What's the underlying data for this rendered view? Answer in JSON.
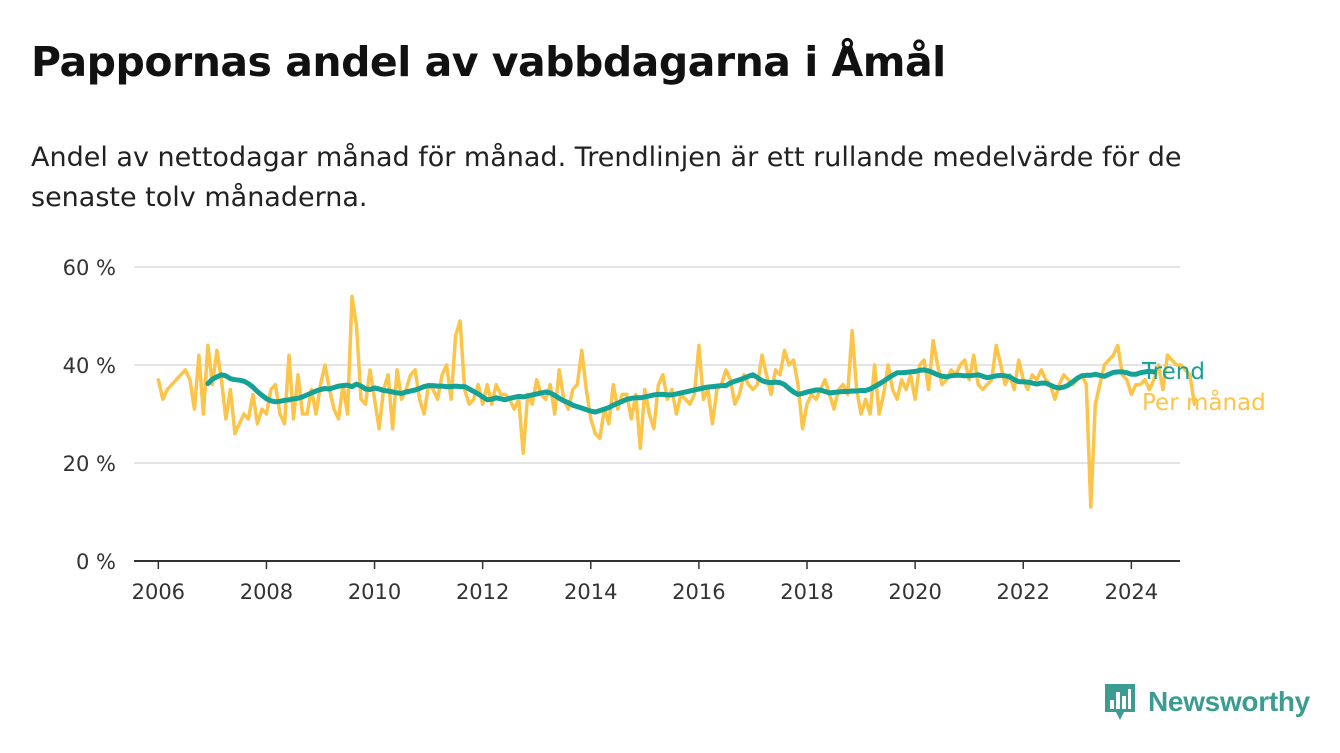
{
  "title": "Pappornas andel av vabbdagarna i Åmål",
  "subtitle": "Andel av nettodagar månad för månad. Trendlinjen är ett rullande medelvärde för de senaste tolv månaderna.",
  "brand": {
    "name": "Newsworthy",
    "color": "#3d9c92"
  },
  "chart_data": {
    "type": "line",
    "x_range": [
      2005.55,
      2024.9
    ],
    "ylim": [
      0,
      60
    ],
    "y_ticks": [
      0,
      20,
      40,
      60
    ],
    "y_tick_labels": [
      "0 %",
      "20 %",
      "40 %",
      "60 %"
    ],
    "x_ticks": [
      2006,
      2008,
      2010,
      2012,
      2014,
      2016,
      2018,
      2020,
      2022,
      2024
    ],
    "x_tick_labels": [
      "2006",
      "2008",
      "2010",
      "2012",
      "2014",
      "2016",
      "2018",
      "2020",
      "2022",
      "2024"
    ],
    "grid": "horizontal",
    "legend_placement": "end-of-line labels",
    "series": [
      {
        "name": "Per månad",
        "color": "#fcc448",
        "x_start": 2006.0,
        "step": 0.0833333,
        "values": [
          37,
          33,
          35,
          36,
          37,
          38,
          39,
          37,
          31,
          42,
          30,
          44,
          36,
          43,
          37,
          29,
          35,
          26,
          28,
          30,
          29,
          34,
          28,
          31,
          30,
          35,
          36,
          30,
          28,
          42,
          29,
          38,
          30,
          30,
          35,
          30,
          36,
          40,
          35,
          31,
          29,
          36,
          30,
          54,
          48,
          33,
          32,
          39,
          33,
          27,
          35,
          38,
          27,
          39,
          33,
          35,
          38,
          39,
          33,
          30,
          36,
          35,
          33,
          38,
          40,
          33,
          46,
          49,
          35,
          32,
          33,
          36,
          32,
          36,
          32,
          36,
          34,
          34,
          33,
          31,
          33,
          22,
          34,
          32,
          37,
          34,
          33,
          36,
          30,
          39,
          33,
          31,
          35,
          36,
          43,
          35,
          29,
          26,
          25,
          31,
          28,
          36,
          31,
          34,
          34,
          29,
          34,
          23,
          35,
          30,
          27,
          36,
          38,
          33,
          35,
          30,
          34,
          33,
          32,
          34,
          44,
          33,
          35,
          28,
          35,
          36,
          39,
          37,
          32,
          34,
          38,
          36,
          35,
          36,
          42,
          38,
          34,
          39,
          38,
          43,
          40,
          41,
          36,
          27,
          32,
          34,
          33,
          35,
          37,
          34,
          31,
          35,
          36,
          34,
          47,
          35,
          30,
          33,
          30,
          40,
          30,
          34,
          40,
          35,
          33,
          37,
          35,
          38,
          33,
          40,
          41,
          35,
          45,
          40,
          36,
          37,
          39,
          38,
          40,
          41,
          37,
          42,
          36,
          35,
          36,
          37,
          44,
          40,
          36,
          38,
          35,
          41,
          37,
          35,
          38,
          37,
          39,
          37,
          36,
          33,
          36,
          38,
          37,
          36,
          37,
          38,
          36,
          11,
          32,
          36,
          40,
          41,
          42,
          44,
          38,
          37,
          34,
          36,
          36,
          37,
          35,
          37,
          40,
          35,
          42,
          41,
          40,
          40,
          39,
          38,
          32
        ]
      },
      {
        "name": "Trend",
        "color": "#14a296",
        "x_start": 2006.917,
        "step": 0.0833333,
        "values": [
          36.2,
          37.1,
          37.6,
          38.0,
          37.8,
          37.2,
          37.0,
          36.9,
          36.7,
          36.2,
          35.5,
          34.6,
          33.8,
          33.1,
          32.7,
          32.5,
          32.6,
          32.8,
          32.9,
          33.1,
          33.2,
          33.5,
          33.9,
          34.3,
          34.7,
          35.0,
          35.2,
          35.1,
          35.4,
          35.7,
          35.8,
          35.9,
          35.6,
          36.1,
          35.7,
          35.1,
          35.0,
          35.3,
          35.1,
          34.8,
          34.7,
          34.5,
          34.3,
          34.2,
          34.5,
          34.7,
          34.9,
          35.2,
          35.6,
          35.8,
          35.8,
          35.7,
          35.7,
          35.6,
          35.6,
          35.7,
          35.6,
          35.6,
          35.1,
          34.6,
          34.1,
          33.5,
          32.9,
          33.0,
          33.3,
          33.1,
          32.9,
          33.2,
          33.4,
          33.6,
          33.5,
          33.7,
          33.9,
          34.1,
          34.3,
          34.5,
          34.3,
          33.8,
          33.2,
          32.7,
          32.3,
          31.8,
          31.5,
          31.2,
          30.9,
          30.6,
          30.4,
          30.7,
          31.0,
          31.3,
          31.8,
          32.2,
          32.6,
          33.0,
          33.2,
          33.3,
          33.3,
          33.5,
          33.7,
          33.9,
          34.0,
          34.0,
          33.9,
          33.9,
          34.1,
          34.3,
          34.5,
          34.7,
          34.9,
          35.1,
          35.3,
          35.5,
          35.6,
          35.7,
          35.8,
          35.8,
          36.3,
          36.7,
          37.0,
          37.3,
          37.7,
          38.0,
          37.4,
          36.8,
          36.5,
          36.4,
          36.5,
          36.4,
          36.0,
          35.2,
          34.5,
          34.0,
          34.2,
          34.5,
          34.7,
          34.9,
          34.9,
          34.6,
          34.3,
          34.4,
          34.5,
          34.6,
          34.6,
          34.7,
          34.7,
          34.8,
          34.8,
          35.1,
          35.6,
          36.1,
          36.7,
          37.3,
          37.9,
          38.4,
          38.4,
          38.5,
          38.6,
          38.7,
          38.9,
          39.0,
          38.8,
          38.4,
          38.0,
          37.7,
          37.6,
          37.8,
          37.9,
          37.9,
          37.8,
          37.8,
          37.9,
          38.0,
          37.7,
          37.4,
          37.6,
          37.8,
          37.9,
          37.8,
          37.6,
          37.0,
          36.6,
          36.6,
          36.5,
          36.3,
          36.1,
          36.3,
          36.3,
          35.9,
          35.5,
          35.3,
          35.5,
          35.9,
          36.6,
          37.3,
          37.8,
          37.9,
          37.9,
          38.1,
          37.9,
          37.7,
          38.1,
          38.5,
          38.6,
          38.6,
          38.4,
          38.1,
          38.1,
          38.4,
          38.6,
          38.7,
          38.6
        ]
      }
    ]
  }
}
